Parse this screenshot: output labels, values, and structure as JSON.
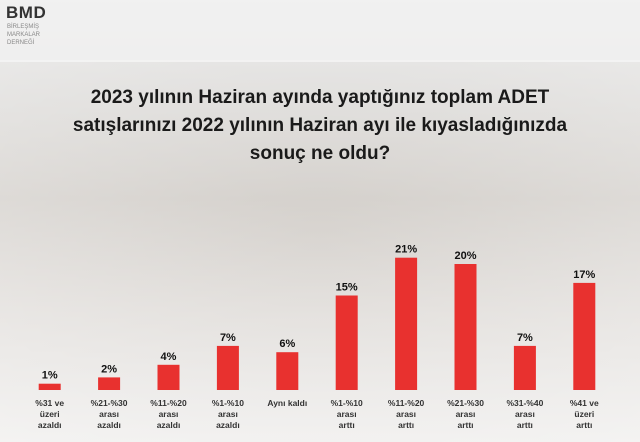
{
  "logo": {
    "name": "BMD",
    "lines": [
      "BİRLEŞMİŞ",
      "MARKALAR",
      "DERNEĞİ"
    ]
  },
  "chart_data": {
    "type": "bar",
    "title": "2023 yılının Haziran ayında yaptığınız toplam ADET satışlarınızı 2022 yılının Haziran ayı ile kıyasladığınızda sonuç ne oldu?",
    "categories": [
      "%31 ve\nüzeri\nazaldı",
      "%21-%30\narası\nazaldı",
      "%11-%20\narası\nazaldı",
      "%1-%10\narası\nazaldı",
      "Aynı kaldı",
      "%1-%10\narası\narttı",
      "%11-%20\narası\narttı",
      "%21-%30\narası\narttı",
      "%31-%40\narası\narttı",
      "%41 ve\nüzeri\narttı"
    ],
    "values": [
      1,
      2,
      4,
      7,
      6,
      15,
      21,
      20,
      7,
      17
    ],
    "value_labels": [
      "1%",
      "2%",
      "4%",
      "7%",
      "6%",
      "15%",
      "21%",
      "20%",
      "7%",
      "17%"
    ],
    "color": "#e8312f"
  }
}
